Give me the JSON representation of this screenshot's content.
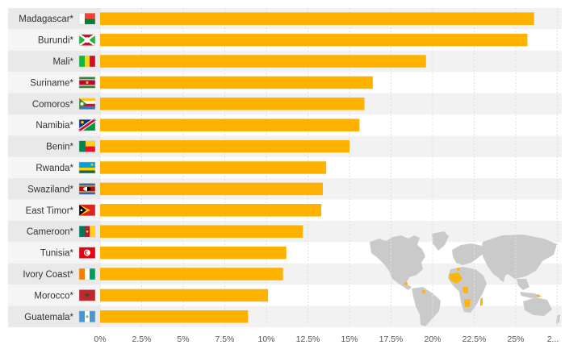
{
  "chart_data": {
    "type": "bar",
    "orientation": "horizontal",
    "title": "",
    "xlabel": "",
    "ylabel": "",
    "categories": [
      "Madagascar*",
      "Burundi*",
      "Mali*",
      "Suriname*",
      "Comoros*",
      "Namibia*",
      "Benin*",
      "Rwanda*",
      "Swaziland*",
      "East Timor*",
      "Cameroon*",
      "Tunisia*",
      "Ivory Coast*",
      "Morocco*",
      "Guatemala*"
    ],
    "values": [
      26.1,
      25.7,
      19.6,
      16.4,
      15.9,
      15.6,
      15.0,
      13.6,
      13.4,
      13.3,
      12.2,
      11.2,
      11.0,
      10.1,
      8.9
    ],
    "xlim": [
      0,
      27.5
    ],
    "x_ticks": [
      "0%",
      "2.5%",
      "5%",
      "7.5%",
      "10%",
      "12.5%",
      "15%",
      "17.5%",
      "20%",
      "22.5%",
      "25%",
      "2..."
    ],
    "bar_color": "#FDB200",
    "grid": true,
    "decoration": "world-map-with-highlighted-countries"
  }
}
